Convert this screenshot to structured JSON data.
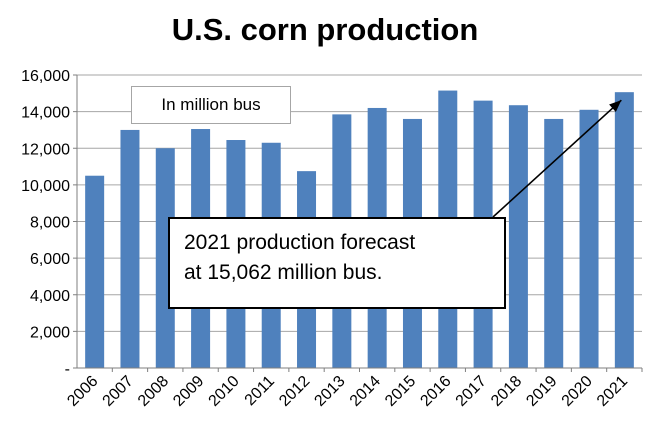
{
  "chart_data": {
    "type": "bar",
    "title": "U.S. corn production",
    "unit_label": "In million bus",
    "categories": [
      "2006",
      "2007",
      "2008",
      "2009",
      "2010",
      "2011",
      "2012",
      "2013",
      "2014",
      "2015",
      "2016",
      "2017",
      "2018",
      "2019",
      "2020",
      "2021"
    ],
    "values": [
      10500,
      13000,
      12000,
      13050,
      12450,
      12300,
      10750,
      13850,
      14200,
      13600,
      15150,
      14600,
      14350,
      13600,
      14100,
      15062
    ],
    "ylim": [
      0,
      16000
    ],
    "yticks": [
      "-",
      "2,000",
      "4,000",
      "6,000",
      "8,000",
      "10,000",
      "12,000",
      "14,000",
      "16,000"
    ],
    "grid": true,
    "bar_color": "#4f81bd",
    "annotation": {
      "lines": [
        "2021 production forecast",
        "at 15,062 million bus."
      ],
      "points_to": "2021"
    }
  }
}
